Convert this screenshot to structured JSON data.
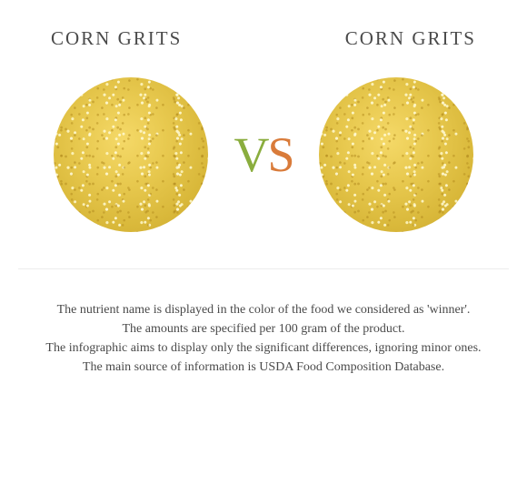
{
  "left": {
    "title": "CORN GRITS"
  },
  "right": {
    "title": "CORN GRITS"
  },
  "vs": {
    "v": "V",
    "s": "S"
  },
  "notes": {
    "l1": "The nutrient name is displayed in the color of the food we considered as 'winner'.",
    "l2": "The amounts are specified per 100 gram of the product.",
    "l3": "The infographic aims to display only the significant differences, ignoring minor ones.",
    "l4": "The main source of information is USDA Food Composition Database."
  },
  "style": {
    "title_color": "#4a4a4a",
    "v_color": "#8aad3e",
    "s_color": "#d97b3a",
    "note_color": "#4a4a4a",
    "circle_base": "#e8c94f",
    "background": "#ffffff"
  }
}
